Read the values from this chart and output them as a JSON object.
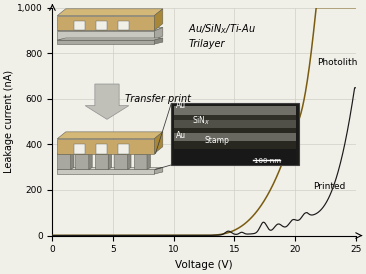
{
  "xlabel": "Voltage (V)",
  "ylabel": "Leakage current (nA)",
  "xlim": [
    0,
    25
  ],
  "ylim": [
    0,
    1000
  ],
  "xticks": [
    0,
    5,
    10,
    15,
    20,
    25
  ],
  "yticks": [
    0,
    200,
    400,
    600,
    800,
    1000
  ],
  "ytick_labels": [
    "0",
    "200",
    "400",
    "600",
    "800",
    "1,000"
  ],
  "grid_color": "#d0d0c8",
  "bg_color": "#f0efe8",
  "photolith_color": "#7a5c10",
  "printed_color": "#1a1a1a",
  "label_photolith": "Photolith",
  "label_printed": "Printed",
  "gold_color": "#c8a868",
  "gold_dark": "#a88838",
  "gray_light": "#c8c8c0",
  "gray_mid": "#a8a8a0",
  "gray_dark": "#888880",
  "trilayer_line1": "Au/SiN",
  "trilayer_line2": "Trilayer",
  "transfer_text": "Transfer print",
  "inset_bg": "#1a1a18"
}
